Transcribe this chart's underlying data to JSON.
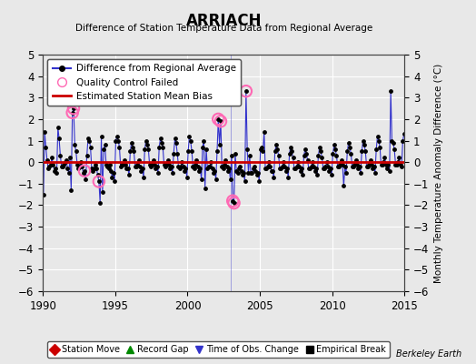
{
  "title": "ARRIACH",
  "subtitle": "Difference of Station Temperature Data from Regional Average",
  "ylabel": "Monthly Temperature Anomaly Difference (°C)",
  "xlim": [
    1990,
    2015
  ],
  "ylim": [
    -6,
    5
  ],
  "yticks": [
    -6,
    -5,
    -4,
    -3,
    -2,
    -1,
    0,
    1,
    2,
    3,
    4,
    5
  ],
  "xticks": [
    1990,
    1995,
    2000,
    2005,
    2010,
    2015
  ],
  "bias": 0.0,
  "background_color": "#e8e8e8",
  "plot_bg_color": "#e8e8e8",
  "line_color": "#3333cc",
  "dot_color": "#000000",
  "bias_color": "#cc0000",
  "qc_color": "#ff69b4",
  "berkeley_earth_text": "Berkeley Earth",
  "legend1_labels": [
    "Difference from Regional Average",
    "Quality Control Failed",
    "Estimated Station Mean Bias"
  ],
  "legend2_labels": [
    "Station Move",
    "Record Gap",
    "Time of Obs. Change",
    "Empirical Break"
  ],
  "legend2_colors": [
    "#cc0000",
    "#008800",
    "#3333cc",
    "#000000"
  ],
  "legend2_markers": [
    "D",
    "^",
    "v",
    "s"
  ],
  "time_of_obs_vline_x": 2003.0,
  "time_series": [
    [
      1990.042,
      -1.5
    ],
    [
      1990.125,
      1.4
    ],
    [
      1990.208,
      0.7
    ],
    [
      1990.292,
      0.1
    ],
    [
      1990.375,
      -0.3
    ],
    [
      1990.458,
      -0.2
    ],
    [
      1990.542,
      -0.1
    ],
    [
      1990.625,
      0.2
    ],
    [
      1990.708,
      -0.1
    ],
    [
      1990.792,
      -0.4
    ],
    [
      1990.875,
      -0.3
    ],
    [
      1990.958,
      -0.5
    ],
    [
      1991.042,
      1.6
    ],
    [
      1991.125,
      1.1
    ],
    [
      1991.208,
      0.3
    ],
    [
      1991.292,
      -0.2
    ],
    [
      1991.375,
      -0.2
    ],
    [
      1991.458,
      -0.1
    ],
    [
      1991.542,
      0.0
    ],
    [
      1991.625,
      0.1
    ],
    [
      1991.708,
      -0.3
    ],
    [
      1991.792,
      -0.5
    ],
    [
      1991.875,
      0.2
    ],
    [
      1991.958,
      -1.3
    ],
    [
      1992.042,
      2.3
    ],
    [
      1992.125,
      2.5
    ],
    [
      1992.208,
      0.8
    ],
    [
      1992.292,
      0.5
    ],
    [
      1992.375,
      -0.1
    ],
    [
      1992.458,
      -0.3
    ],
    [
      1992.542,
      -0.2
    ],
    [
      1992.625,
      0.0
    ],
    [
      1992.708,
      -0.2
    ],
    [
      1992.792,
      -0.5
    ],
    [
      1992.875,
      -0.4
    ],
    [
      1992.958,
      -0.8
    ],
    [
      1993.042,
      0.3
    ],
    [
      1993.125,
      1.1
    ],
    [
      1993.208,
      1.0
    ],
    [
      1993.292,
      0.7
    ],
    [
      1993.375,
      -0.3
    ],
    [
      1993.458,
      -0.4
    ],
    [
      1993.542,
      -0.3
    ],
    [
      1993.625,
      -0.1
    ],
    [
      1993.708,
      -0.3
    ],
    [
      1993.792,
      -0.6
    ],
    [
      1993.875,
      -0.9
    ],
    [
      1993.958,
      -1.9
    ],
    [
      1994.042,
      1.2
    ],
    [
      1994.125,
      -1.4
    ],
    [
      1994.208,
      0.6
    ],
    [
      1994.292,
      0.8
    ],
    [
      1994.375,
      -0.1
    ],
    [
      1994.458,
      -0.2
    ],
    [
      1994.542,
      -0.3
    ],
    [
      1994.625,
      -0.1
    ],
    [
      1994.708,
      -0.4
    ],
    [
      1994.792,
      -0.7
    ],
    [
      1994.875,
      -0.5
    ],
    [
      1994.958,
      -0.9
    ],
    [
      1995.042,
      1.0
    ],
    [
      1995.125,
      1.2
    ],
    [
      1995.208,
      1.0
    ],
    [
      1995.292,
      0.7
    ],
    [
      1995.375,
      -0.2
    ],
    [
      1995.458,
      -0.1
    ],
    [
      1995.542,
      -0.1
    ],
    [
      1995.625,
      0.1
    ],
    [
      1995.708,
      -0.1
    ],
    [
      1995.792,
      -0.3
    ],
    [
      1995.875,
      -0.3
    ],
    [
      1995.958,
      -0.6
    ],
    [
      1996.042,
      0.5
    ],
    [
      1996.125,
      0.9
    ],
    [
      1996.208,
      0.7
    ],
    [
      1996.292,
      0.5
    ],
    [
      1996.375,
      -0.2
    ],
    [
      1996.458,
      -0.2
    ],
    [
      1996.542,
      -0.1
    ],
    [
      1996.625,
      0.1
    ],
    [
      1996.708,
      -0.2
    ],
    [
      1996.792,
      -0.4
    ],
    [
      1996.875,
      -0.3
    ],
    [
      1996.958,
      -0.7
    ],
    [
      1997.042,
      0.6
    ],
    [
      1997.125,
      1.0
    ],
    [
      1997.208,
      0.8
    ],
    [
      1997.292,
      0.6
    ],
    [
      1997.375,
      -0.1
    ],
    [
      1997.458,
      -0.2
    ],
    [
      1997.542,
      -0.1
    ],
    [
      1997.625,
      0.1
    ],
    [
      1997.708,
      -0.1
    ],
    [
      1997.792,
      -0.3
    ],
    [
      1997.875,
      -0.2
    ],
    [
      1997.958,
      -0.5
    ],
    [
      1998.042,
      0.7
    ],
    [
      1998.125,
      1.1
    ],
    [
      1998.208,
      0.9
    ],
    [
      1998.292,
      0.7
    ],
    [
      1998.375,
      -0.1
    ],
    [
      1998.458,
      -0.2
    ],
    [
      1998.542,
      -0.1
    ],
    [
      1998.625,
      0.1
    ],
    [
      1998.708,
      -0.1
    ],
    [
      1998.792,
      -0.3
    ],
    [
      1998.875,
      -0.2
    ],
    [
      1998.958,
      -0.5
    ],
    [
      1999.042,
      0.4
    ],
    [
      1999.125,
      1.1
    ],
    [
      1999.208,
      0.9
    ],
    [
      1999.292,
      0.4
    ],
    [
      1999.375,
      -0.2
    ],
    [
      1999.458,
      -0.3
    ],
    [
      1999.542,
      -0.2
    ],
    [
      1999.625,
      0.0
    ],
    [
      1999.708,
      -0.2
    ],
    [
      1999.792,
      -0.4
    ],
    [
      1999.875,
      -0.3
    ],
    [
      1999.958,
      -0.7
    ],
    [
      2000.042,
      0.5
    ],
    [
      2000.125,
      1.2
    ],
    [
      2000.208,
      1.0
    ],
    [
      2000.292,
      0.5
    ],
    [
      2000.375,
      -0.2
    ],
    [
      2000.458,
      -0.3
    ],
    [
      2000.542,
      -0.1
    ],
    [
      2000.625,
      0.1
    ],
    [
      2000.708,
      -0.2
    ],
    [
      2000.792,
      -0.4
    ],
    [
      2000.875,
      -0.3
    ],
    [
      2000.958,
      -0.8
    ],
    [
      2001.042,
      0.7
    ],
    [
      2001.125,
      1.0
    ],
    [
      2001.208,
      -1.2
    ],
    [
      2001.292,
      0.6
    ],
    [
      2001.375,
      -0.3
    ],
    [
      2001.458,
      -0.2
    ],
    [
      2001.542,
      -0.2
    ],
    [
      2001.625,
      0.0
    ],
    [
      2001.708,
      -0.3
    ],
    [
      2001.792,
      -0.5
    ],
    [
      2001.875,
      -0.4
    ],
    [
      2001.958,
      -0.8
    ],
    [
      2002.042,
      0.5
    ],
    [
      2002.125,
      2.0
    ],
    [
      2002.208,
      0.8
    ],
    [
      2002.292,
      1.9
    ],
    [
      2002.375,
      -0.2
    ],
    [
      2002.458,
      -0.3
    ],
    [
      2002.542,
      -0.1
    ],
    [
      2002.625,
      0.1
    ],
    [
      2002.708,
      -0.2
    ],
    [
      2002.792,
      -0.4
    ],
    [
      2002.875,
      -0.3
    ],
    [
      2002.958,
      -0.8
    ],
    [
      2003.042,
      0.3
    ],
    [
      2003.125,
      -1.8
    ],
    [
      2003.208,
      -1.9
    ],
    [
      2003.292,
      0.4
    ],
    [
      2003.375,
      -0.4
    ],
    [
      2003.458,
      -0.5
    ],
    [
      2003.542,
      -0.3
    ],
    [
      2003.625,
      -0.2
    ],
    [
      2003.708,
      -0.4
    ],
    [
      2003.792,
      -0.6
    ],
    [
      2003.875,
      -0.5
    ],
    [
      2003.958,
      -0.9
    ],
    [
      2004.042,
      3.3
    ],
    [
      2004.125,
      0.6
    ],
    [
      2004.208,
      -0.5
    ],
    [
      2004.292,
      0.3
    ],
    [
      2004.375,
      -0.5
    ],
    [
      2004.458,
      -0.5
    ],
    [
      2004.542,
      -0.3
    ],
    [
      2004.625,
      -0.2
    ],
    [
      2004.708,
      -0.4
    ],
    [
      2004.792,
      -0.6
    ],
    [
      2004.875,
      -0.5
    ],
    [
      2004.958,
      -0.9
    ],
    [
      2005.042,
      0.6
    ],
    [
      2005.125,
      0.7
    ],
    [
      2005.208,
      0.5
    ],
    [
      2005.292,
      1.4
    ],
    [
      2005.375,
      -0.3
    ],
    [
      2005.458,
      -0.3
    ],
    [
      2005.542,
      -0.2
    ],
    [
      2005.625,
      0.0
    ],
    [
      2005.708,
      -0.2
    ],
    [
      2005.792,
      -0.4
    ],
    [
      2005.875,
      -0.4
    ],
    [
      2005.958,
      -0.7
    ],
    [
      2006.042,
      0.5
    ],
    [
      2006.125,
      0.8
    ],
    [
      2006.208,
      0.6
    ],
    [
      2006.292,
      0.3
    ],
    [
      2006.375,
      -0.3
    ],
    [
      2006.458,
      -0.3
    ],
    [
      2006.542,
      -0.2
    ],
    [
      2006.625,
      0.0
    ],
    [
      2006.708,
      -0.2
    ],
    [
      2006.792,
      -0.4
    ],
    [
      2006.875,
      -0.3
    ],
    [
      2006.958,
      -0.7
    ],
    [
      2007.042,
      0.4
    ],
    [
      2007.125,
      0.7
    ],
    [
      2007.208,
      0.5
    ],
    [
      2007.292,
      0.2
    ],
    [
      2007.375,
      -0.3
    ],
    [
      2007.458,
      -0.3
    ],
    [
      2007.542,
      -0.2
    ],
    [
      2007.625,
      0.0
    ],
    [
      2007.708,
      -0.2
    ],
    [
      2007.792,
      -0.4
    ],
    [
      2007.875,
      -0.3
    ],
    [
      2007.958,
      -0.6
    ],
    [
      2008.042,
      0.3
    ],
    [
      2008.125,
      0.6
    ],
    [
      2008.208,
      0.4
    ],
    [
      2008.292,
      0.1
    ],
    [
      2008.375,
      -0.3
    ],
    [
      2008.458,
      -0.3
    ],
    [
      2008.542,
      -0.2
    ],
    [
      2008.625,
      0.0
    ],
    [
      2008.708,
      -0.2
    ],
    [
      2008.792,
      -0.4
    ],
    [
      2008.875,
      -0.3
    ],
    [
      2008.958,
      -0.6
    ],
    [
      2009.042,
      0.3
    ],
    [
      2009.125,
      0.7
    ],
    [
      2009.208,
      0.5
    ],
    [
      2009.292,
      0.2
    ],
    [
      2009.375,
      -0.3
    ],
    [
      2009.458,
      -0.3
    ],
    [
      2009.542,
      -0.2
    ],
    [
      2009.625,
      0.0
    ],
    [
      2009.708,
      -0.2
    ],
    [
      2009.792,
      -0.4
    ],
    [
      2009.875,
      -0.3
    ],
    [
      2009.958,
      -0.6
    ],
    [
      2010.042,
      0.4
    ],
    [
      2010.125,
      0.8
    ],
    [
      2010.208,
      0.6
    ],
    [
      2010.292,
      0.3
    ],
    [
      2010.375,
      -0.2
    ],
    [
      2010.458,
      -0.2
    ],
    [
      2010.542,
      -0.1
    ],
    [
      2010.625,
      0.1
    ],
    [
      2010.708,
      -0.1
    ],
    [
      2010.792,
      -1.1
    ],
    [
      2010.875,
      -0.2
    ],
    [
      2010.958,
      -0.5
    ],
    [
      2011.042,
      0.5
    ],
    [
      2011.125,
      0.9
    ],
    [
      2011.208,
      0.7
    ],
    [
      2011.292,
      0.4
    ],
    [
      2011.375,
      -0.2
    ],
    [
      2011.458,
      -0.2
    ],
    [
      2011.542,
      -0.1
    ],
    [
      2011.625,
      0.1
    ],
    [
      2011.708,
      -0.1
    ],
    [
      2011.792,
      -0.3
    ],
    [
      2011.875,
      -0.2
    ],
    [
      2011.958,
      -0.5
    ],
    [
      2012.042,
      0.5
    ],
    [
      2012.125,
      1.0
    ],
    [
      2012.208,
      0.8
    ],
    [
      2012.292,
      0.5
    ],
    [
      2012.375,
      -0.2
    ],
    [
      2012.458,
      -0.2
    ],
    [
      2012.542,
      -0.1
    ],
    [
      2012.625,
      0.1
    ],
    [
      2012.708,
      -0.1
    ],
    [
      2012.792,
      -0.3
    ],
    [
      2012.875,
      -0.2
    ],
    [
      2012.958,
      -0.5
    ],
    [
      2013.042,
      0.6
    ],
    [
      2013.125,
      1.2
    ],
    [
      2013.208,
      1.0
    ],
    [
      2013.292,
      0.7
    ],
    [
      2013.375,
      -0.1
    ],
    [
      2013.458,
      -0.1
    ],
    [
      2013.542,
      0.0
    ],
    [
      2013.625,
      0.2
    ],
    [
      2013.708,
      -0.1
    ],
    [
      2013.792,
      -0.3
    ],
    [
      2013.875,
      -0.1
    ],
    [
      2013.958,
      -0.4
    ],
    [
      2014.042,
      3.3
    ],
    [
      2014.125,
      1.0
    ],
    [
      2014.208,
      0.9
    ],
    [
      2014.292,
      0.6
    ],
    [
      2014.375,
      -0.1
    ],
    [
      2014.458,
      -0.1
    ],
    [
      2014.542,
      0.0
    ],
    [
      2014.625,
      0.2
    ],
    [
      2014.708,
      -0.1
    ],
    [
      2014.792,
      -0.2
    ],
    [
      2014.875,
      1.0
    ],
    [
      2014.958,
      1.3
    ]
  ],
  "qc_failed_points": [
    [
      1992.042,
      2.3
    ],
    [
      1992.125,
      2.5
    ],
    [
      1992.875,
      -0.4
    ],
    [
      1993.875,
      -0.9
    ],
    [
      2002.125,
      2.0
    ],
    [
      2002.292,
      1.9
    ],
    [
      2003.125,
      -1.8
    ],
    [
      2003.208,
      -1.9
    ],
    [
      2004.042,
      3.3
    ]
  ]
}
